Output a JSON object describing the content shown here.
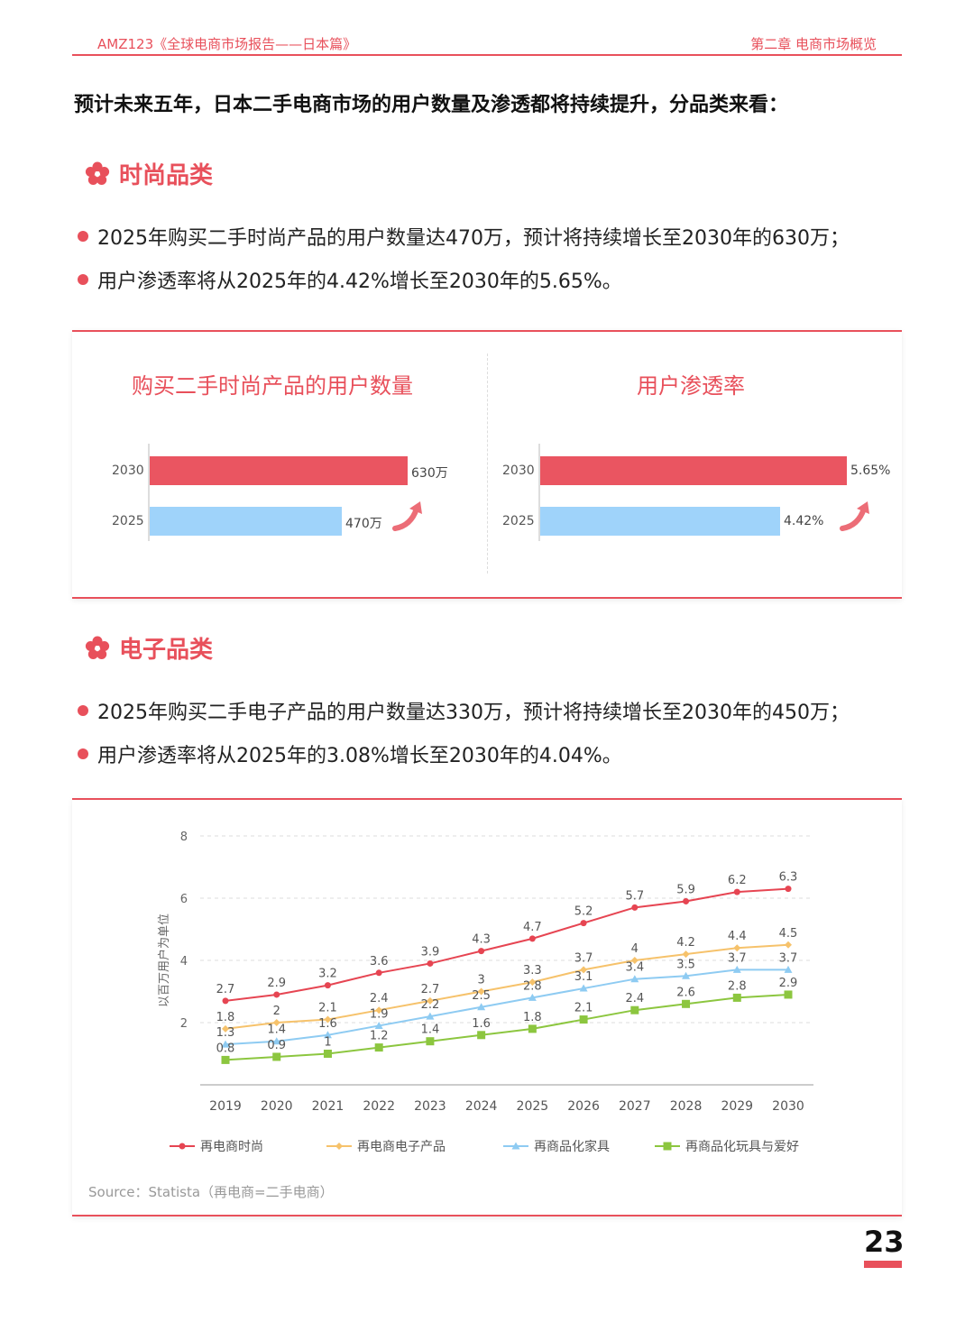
{
  "header": {
    "left": "AMZ123《全球电商市场报告——日本篇》",
    "right": "第二章  电商市场概览"
  },
  "intro": "预计未来五年，日本二手电商市场的用户数量及渗透都将持续提升，分品类来看：",
  "section1": {
    "title": "时尚品类",
    "bullets": [
      "2025年购买二手时尚产品的用户数量达470万，预计将持续增长至2030年的630万；",
      "用户渗透率将从2025年的4.42%增长至2030年的5.65%。"
    ]
  },
  "section2": {
    "title": "电子品类",
    "bullets": [
      "2025年购买二手电子产品的用户数量达330万，预计将持续增长至2030年的450万；",
      "用户渗透率将从2025年的3.08%增长至2030年的4.04%。"
    ]
  },
  "source": "Source：Statista（再电商=二手电商）",
  "page_number": "23",
  "colors": {
    "accent": "#e8505b",
    "fashion": "#e64552",
    "electronics": "#f6c26b",
    "furniture": "#8ecbf2",
    "toys": "#8cc63f"
  },
  "chart_data": [
    {
      "type": "bar",
      "title": "购买二手时尚产品的用户数量",
      "categories": [
        "2030",
        "2025"
      ],
      "values": [
        630,
        470
      ],
      "value_labels": [
        "630万",
        "470万"
      ],
      "colors": [
        "#ea5561",
        "#9fd3fa"
      ]
    },
    {
      "type": "bar",
      "title": "用户渗透率",
      "categories": [
        "2030",
        "2025"
      ],
      "values": [
        5.65,
        4.42
      ],
      "value_labels": [
        "5.65%",
        "4.42%"
      ],
      "colors": [
        "#ea5561",
        "#9fd3fa"
      ]
    },
    {
      "type": "line",
      "title": "",
      "ylabel": "以百万用户为单位",
      "xlabel": "",
      "ylim": [
        0,
        8
      ],
      "yticks": [
        2,
        4,
        6,
        8
      ],
      "x": [
        "2019",
        "2020",
        "2021",
        "2022",
        "2023",
        "2024",
        "2025",
        "2026",
        "2027",
        "2028",
        "2029",
        "2030"
      ],
      "legend_position": "bottom",
      "grid": true,
      "series": [
        {
          "name": "再电商时尚",
          "color": "#e64552",
          "marker": "circle",
          "values": [
            2.7,
            2.9,
            3.2,
            3.6,
            3.9,
            4.3,
            4.7,
            5.2,
            5.7,
            5.9,
            6.2,
            6.3
          ]
        },
        {
          "name": "再电商电子产品",
          "color": "#f6c26b",
          "marker": "diamond",
          "values": [
            1.8,
            2,
            2.1,
            2.4,
            2.7,
            3,
            3.3,
            3.7,
            4,
            4.2,
            4.4,
            4.5
          ]
        },
        {
          "name": "再商品化家具",
          "color": "#8ecbf2",
          "marker": "triangle",
          "values": [
            1.3,
            1.4,
            1.6,
            1.9,
            2.2,
            2.5,
            2.8,
            3.1,
            3.4,
            3.5,
            3.7,
            3.7
          ]
        },
        {
          "name": "再商品化玩具与爱好",
          "color": "#8cc63f",
          "marker": "square",
          "values": [
            0.8,
            0.9,
            1,
            1.2,
            1.4,
            1.6,
            1.8,
            2.1,
            2.4,
            2.6,
            2.8,
            2.9
          ]
        }
      ]
    }
  ]
}
